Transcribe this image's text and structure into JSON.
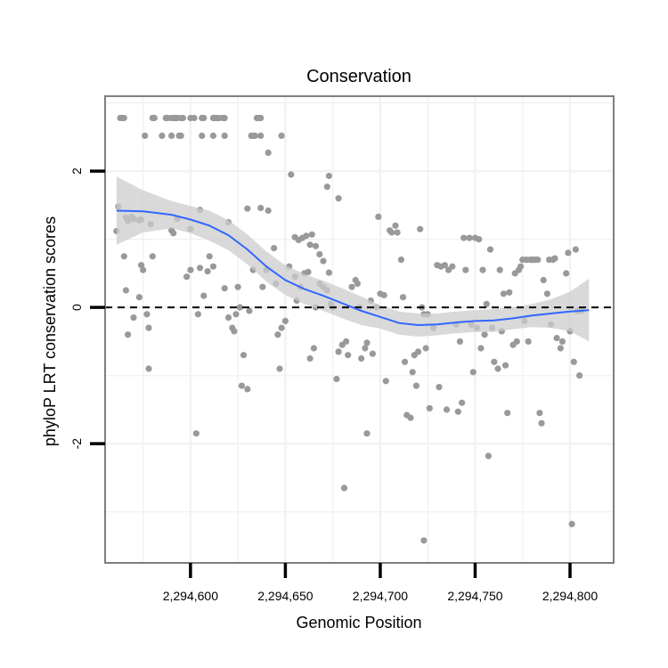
{
  "chart_data": {
    "type": "scatter",
    "title": "Conservation",
    "xlabel": "Genomic Position",
    "ylabel": "phyloP LRT conservation scores",
    "xlim": [
      2294555,
      2294823
    ],
    "ylim": [
      -3.75,
      3.1
    ],
    "x_ticks": [
      2294600,
      2294650,
      2294700,
      2294750,
      2294800
    ],
    "x_tick_labels": [
      "2,294,600",
      "2,294,650",
      "2,294,700",
      "2,294,750",
      "2,294,800"
    ],
    "y_ticks": [
      -2,
      0,
      2
    ],
    "y_tick_labels": [
      "-2",
      "0",
      "2"
    ],
    "reference_line": {
      "y": 0,
      "style": "dashed"
    },
    "colors": {
      "points": "#999999",
      "smooth": "#3366ff",
      "ribbon": "#cccccc",
      "panel_border": "#7f7f7f",
      "grid": "#f2f2f2"
    },
    "points": [
      [
        2294563,
        2.78
      ],
      [
        2294564,
        2.78
      ],
      [
        2294565,
        2.78
      ],
      [
        2294580,
        2.78
      ],
      [
        2294581,
        2.78
      ],
      [
        2294587,
        2.78
      ],
      [
        2294588,
        2.78
      ],
      [
        2294590,
        2.78
      ],
      [
        2294591,
        2.78
      ],
      [
        2294592,
        2.78
      ],
      [
        2294593,
        2.78
      ],
      [
        2294595,
        2.78
      ],
      [
        2294596,
        2.78
      ],
      [
        2294600,
        2.78
      ],
      [
        2294602,
        2.78
      ],
      [
        2294606,
        2.78
      ],
      [
        2294607,
        2.78
      ],
      [
        2294612,
        2.78
      ],
      [
        2294613,
        2.78
      ],
      [
        2294614,
        2.78
      ],
      [
        2294615,
        2.78
      ],
      [
        2294617,
        2.78
      ],
      [
        2294618,
        2.78
      ],
      [
        2294635,
        2.78
      ],
      [
        2294636,
        2.78
      ],
      [
        2294637,
        2.78
      ],
      [
        2294576,
        2.52
      ],
      [
        2294585,
        2.52
      ],
      [
        2294590,
        2.52
      ],
      [
        2294594,
        2.52
      ],
      [
        2294595,
        2.52
      ],
      [
        2294606,
        2.52
      ],
      [
        2294612,
        2.52
      ],
      [
        2294618,
        2.52
      ],
      [
        2294632,
        2.52
      ],
      [
        2294633,
        2.52
      ],
      [
        2294634,
        2.52
      ],
      [
        2294637,
        2.52
      ],
      [
        2294648,
        2.52
      ],
      [
        2294641,
        2.27
      ],
      [
        2294653,
        1.95
      ],
      [
        2294673,
        1.93
      ],
      [
        2294672,
        1.77
      ],
      [
        2294678,
        1.6
      ],
      [
        2294562,
        1.48
      ],
      [
        2294561,
        1.12
      ],
      [
        2294566,
        1.32
      ],
      [
        2294567,
        1.27
      ],
      [
        2294569,
        1.33
      ],
      [
        2294570,
        1.3
      ],
      [
        2294573,
        1.28
      ],
      [
        2294574,
        1.29
      ],
      [
        2294579,
        1.22
      ],
      [
        2294590,
        1.13
      ],
      [
        2294591,
        1.09
      ],
      [
        2294600,
        1.15
      ],
      [
        2294605,
        1.43
      ],
      [
        2294620,
        1.25
      ],
      [
        2294630,
        1.45
      ],
      [
        2294637,
        1.46
      ],
      [
        2294641,
        1.42
      ],
      [
        2294655,
        1.03
      ],
      [
        2294657,
        0.99
      ],
      [
        2294659,
        1.02
      ],
      [
        2294661,
        1.05
      ],
      [
        2294663,
        0.92
      ],
      [
        2294664,
        1.07
      ],
      [
        2294666,
        0.9
      ],
      [
        2294668,
        0.78
      ],
      [
        2294670,
        0.68
      ],
      [
        2294673,
        0.51
      ],
      [
        2294565,
        0.75
      ],
      [
        2294566,
        0.25
      ],
      [
        2294567,
        -0.4
      ],
      [
        2294570,
        -0.15
      ],
      [
        2294573,
        0.15
      ],
      [
        2294574,
        0.62
      ],
      [
        2294575,
        0.55
      ],
      [
        2294577,
        -0.1
      ],
      [
        2294578,
        -0.3
      ],
      [
        2294578,
        -0.9
      ],
      [
        2294580,
        0.75
      ],
      [
        2294598,
        0.45
      ],
      [
        2294600,
        0.55
      ],
      [
        2294604,
        -0.1
      ],
      [
        2294605,
        0.58
      ],
      [
        2294607,
        0.17
      ],
      [
        2294609,
        0.53
      ],
      [
        2294610,
        0.75
      ],
      [
        2294612,
        0.6
      ],
      [
        2294618,
        0.28
      ],
      [
        2294620,
        -0.15
      ],
      [
        2294622,
        -0.3
      ],
      [
        2294623,
        -0.35
      ],
      [
        2294624,
        -0.1
      ],
      [
        2294625,
        0.3
      ],
      [
        2294626,
        0.0
      ],
      [
        2294627,
        -1.15
      ],
      [
        2294628,
        -0.7
      ],
      [
        2294630,
        -1.2
      ],
      [
        2294631,
        -0.05
      ],
      [
        2294633,
        0.55
      ],
      [
        2294638,
        0.3
      ],
      [
        2294640,
        0.55
      ],
      [
        2294644,
        0.87
      ],
      [
        2294645,
        0.35
      ],
      [
        2294646,
        -0.4
      ],
      [
        2294647,
        -0.9
      ],
      [
        2294648,
        -0.3
      ],
      [
        2294650,
        -0.2
      ],
      [
        2294652,
        0.6
      ],
      [
        2294655,
        0.45
      ],
      [
        2294656,
        0.1
      ],
      [
        2294658,
        0.3
      ],
      [
        2294660,
        0.5
      ],
      [
        2294662,
        0.52
      ],
      [
        2294663,
        -0.75
      ],
      [
        2294665,
        -0.6
      ],
      [
        2294666,
        0.0
      ],
      [
        2294668,
        0.35
      ],
      [
        2294670,
        0.3
      ],
      [
        2294672,
        0.25
      ],
      [
        2294674,
        0.05
      ],
      [
        2294675,
        0.0
      ],
      [
        2294677,
        -1.05
      ],
      [
        2294678,
        -0.65
      ],
      [
        2294680,
        -0.55
      ],
      [
        2294682,
        -0.5
      ],
      [
        2294683,
        -0.7
      ],
      [
        2294685,
        0.3
      ],
      [
        2294687,
        0.4
      ],
      [
        2294688,
        0.35
      ],
      [
        2294689,
        0.0
      ],
      [
        2294690,
        -0.75
      ],
      [
        2294692,
        -0.6
      ],
      [
        2294693,
        -0.52
      ],
      [
        2294695,
        0.1
      ],
      [
        2294696,
        -0.68
      ],
      [
        2294698,
        0.0
      ],
      [
        2294699,
        1.33
      ],
      [
        2294700,
        0.2
      ],
      [
        2294702,
        0.18
      ],
      [
        2294703,
        -1.08
      ],
      [
        2294705,
        1.13
      ],
      [
        2294706,
        1.1
      ],
      [
        2294708,
        1.2
      ],
      [
        2294709,
        1.1
      ],
      [
        2294711,
        0.7
      ],
      [
        2294712,
        0.15
      ],
      [
        2294713,
        -0.8
      ],
      [
        2294714,
        -1.58
      ],
      [
        2294716,
        -1.62
      ],
      [
        2294717,
        -0.95
      ],
      [
        2294718,
        -0.7
      ],
      [
        2294719,
        -1.15
      ],
      [
        2294720,
        -0.65
      ],
      [
        2294721,
        1.15
      ],
      [
        2294722,
        0.0
      ],
      [
        2294723,
        -0.1
      ],
      [
        2294724,
        -0.6
      ],
      [
        2294725,
        -0.1
      ],
      [
        2294726,
        -1.48
      ],
      [
        2294728,
        -0.3
      ],
      [
        2294730,
        0.62
      ],
      [
        2294731,
        -1.17
      ],
      [
        2294732,
        0.6
      ],
      [
        2294734,
        0.62
      ],
      [
        2294735,
        -1.5
      ],
      [
        2294736,
        0.55
      ],
      [
        2294738,
        0.6
      ],
      [
        2294740,
        -0.25
      ],
      [
        2294741,
        -1.53
      ],
      [
        2294742,
        -0.5
      ],
      [
        2294743,
        -1.4
      ],
      [
        2294744,
        1.02
      ],
      [
        2294745,
        0.55
      ],
      [
        2294747,
        1.02
      ],
      [
        2294748,
        -0.25
      ],
      [
        2294749,
        -0.95
      ],
      [
        2294750,
        1.02
      ],
      [
        2294751,
        -0.3
      ],
      [
        2294752,
        1.0
      ],
      [
        2294753,
        -0.6
      ],
      [
        2294754,
        0.55
      ],
      [
        2294755,
        -0.4
      ],
      [
        2294756,
        0.05
      ],
      [
        2294757,
        -2.18
      ],
      [
        2294758,
        0.85
      ],
      [
        2294759,
        -0.3
      ],
      [
        2294760,
        -0.8
      ],
      [
        2294762,
        -0.9
      ],
      [
        2294763,
        0.55
      ],
      [
        2294764,
        -0.35
      ],
      [
        2294765,
        0.2
      ],
      [
        2294766,
        -0.85
      ],
      [
        2294767,
        -1.55
      ],
      [
        2294768,
        0.22
      ],
      [
        2294770,
        -0.55
      ],
      [
        2294771,
        0.5
      ],
      [
        2294772,
        -0.5
      ],
      [
        2294773,
        0.55
      ],
      [
        2294774,
        0.6
      ],
      [
        2294775,
        0.7
      ],
      [
        2294776,
        -0.2
      ],
      [
        2294777,
        0.7
      ],
      [
        2294778,
        -0.5
      ],
      [
        2294779,
        0.7
      ],
      [
        2294780,
        0.7
      ],
      [
        2294781,
        0.7
      ],
      [
        2294782,
        0.7
      ],
      [
        2294783,
        0.7
      ],
      [
        2294784,
        -1.55
      ],
      [
        2294785,
        -1.7
      ],
      [
        2294786,
        0.4
      ],
      [
        2294788,
        0.2
      ],
      [
        2294789,
        0.7
      ],
      [
        2294790,
        -0.25
      ],
      [
        2294791,
        0.7
      ],
      [
        2294792,
        0.72
      ],
      [
        2294793,
        -0.45
      ],
      [
        2294795,
        -0.6
      ],
      [
        2294796,
        -0.5
      ],
      [
        2294798,
        0.5
      ],
      [
        2294799,
        0.8
      ],
      [
        2294800,
        -0.35
      ],
      [
        2294801,
        -3.18
      ],
      [
        2294802,
        -0.8
      ],
      [
        2294803,
        0.85
      ],
      [
        2294804,
        -0.05
      ],
      [
        2294805,
        -1.0
      ],
      [
        2294806,
        -0.05
      ],
      [
        2294603,
        -1.85
      ],
      [
        2294681,
        -2.65
      ],
      [
        2294693,
        -1.85
      ],
      [
        2294723,
        -3.42
      ],
      [
        2294593,
        1.3
      ]
    ],
    "smooth_x": [
      2294561,
      2294575,
      2294590,
      2294600,
      2294610,
      2294620,
      2294630,
      2294640,
      2294650,
      2294660,
      2294670,
      2294680,
      2294690,
      2294700,
      2294710,
      2294720,
      2294730,
      2294740,
      2294750,
      2294760,
      2294770,
      2294780,
      2294790,
      2294800,
      2294810
    ],
    "smooth_y": [
      1.42,
      1.41,
      1.36,
      1.29,
      1.2,
      1.06,
      0.85,
      0.6,
      0.4,
      0.27,
      0.17,
      0.06,
      -0.05,
      -0.14,
      -0.23,
      -0.26,
      -0.25,
      -0.22,
      -0.2,
      -0.19,
      -0.16,
      -0.12,
      -0.09,
      -0.06,
      -0.04
    ],
    "ribbon_upper": [
      1.92,
      1.72,
      1.56,
      1.49,
      1.42,
      1.28,
      1.07,
      0.82,
      0.62,
      0.49,
      0.39,
      0.28,
      0.16,
      0.03,
      -0.06,
      -0.09,
      -0.09,
      -0.06,
      -0.04,
      -0.02,
      0.0,
      0.05,
      0.12,
      0.23,
      0.42
    ],
    "ribbon_lower": [
      0.92,
      1.1,
      1.16,
      1.09,
      0.98,
      0.84,
      0.63,
      0.38,
      0.18,
      0.05,
      -0.05,
      -0.16,
      -0.26,
      -0.31,
      -0.4,
      -0.43,
      -0.41,
      -0.38,
      -0.36,
      -0.36,
      -0.32,
      -0.29,
      -0.3,
      -0.35,
      -0.5
    ]
  }
}
